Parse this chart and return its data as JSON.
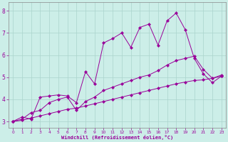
{
  "xlabel": "Windchill (Refroidissement éolien,°C)",
  "background_color": "#cceee8",
  "grid_color": "#aad4cc",
  "line_color": "#990099",
  "xlim": [
    -0.5,
    23.5
  ],
  "ylim": [
    2.7,
    8.4
  ],
  "xticks": [
    0,
    1,
    2,
    3,
    4,
    5,
    6,
    7,
    8,
    9,
    10,
    11,
    12,
    13,
    14,
    15,
    16,
    17,
    18,
    19,
    20,
    21,
    22,
    23
  ],
  "yticks": [
    3,
    4,
    5,
    6,
    7,
    8
  ],
  "line1_x": [
    0,
    1,
    2,
    3,
    4,
    5,
    6,
    7,
    8,
    9,
    10,
    11,
    12,
    13,
    14,
    15,
    16,
    17,
    18,
    19,
    20,
    21,
    22,
    23
  ],
  "line1_y": [
    3.0,
    3.2,
    3.1,
    4.1,
    4.15,
    4.2,
    4.15,
    3.85,
    5.25,
    4.7,
    6.55,
    6.75,
    7.0,
    6.35,
    7.25,
    7.4,
    6.45,
    7.55,
    7.9,
    7.15,
    5.85,
    5.15,
    4.75,
    5.05
  ],
  "line2_x": [
    0,
    1,
    2,
    3,
    4,
    5,
    6,
    7,
    8,
    9,
    10,
    11,
    12,
    13,
    14,
    15,
    16,
    17,
    18,
    19,
    20,
    21,
    22,
    23
  ],
  "line2_y": [
    3.0,
    3.1,
    3.4,
    3.5,
    3.85,
    4.0,
    4.1,
    3.5,
    3.9,
    4.1,
    4.4,
    4.55,
    4.7,
    4.85,
    5.0,
    5.1,
    5.3,
    5.55,
    5.75,
    5.85,
    5.95,
    5.35,
    4.95,
    5.1
  ],
  "line3_x": [
    0,
    1,
    2,
    3,
    4,
    5,
    6,
    7,
    8,
    9,
    10,
    11,
    12,
    13,
    14,
    15,
    16,
    17,
    18,
    19,
    20,
    21,
    22,
    23
  ],
  "line3_y": [
    3.0,
    3.05,
    3.15,
    3.25,
    3.35,
    3.45,
    3.55,
    3.6,
    3.7,
    3.8,
    3.9,
    4.0,
    4.1,
    4.2,
    4.3,
    4.4,
    4.5,
    4.6,
    4.7,
    4.78,
    4.85,
    4.88,
    4.95,
    5.05
  ]
}
